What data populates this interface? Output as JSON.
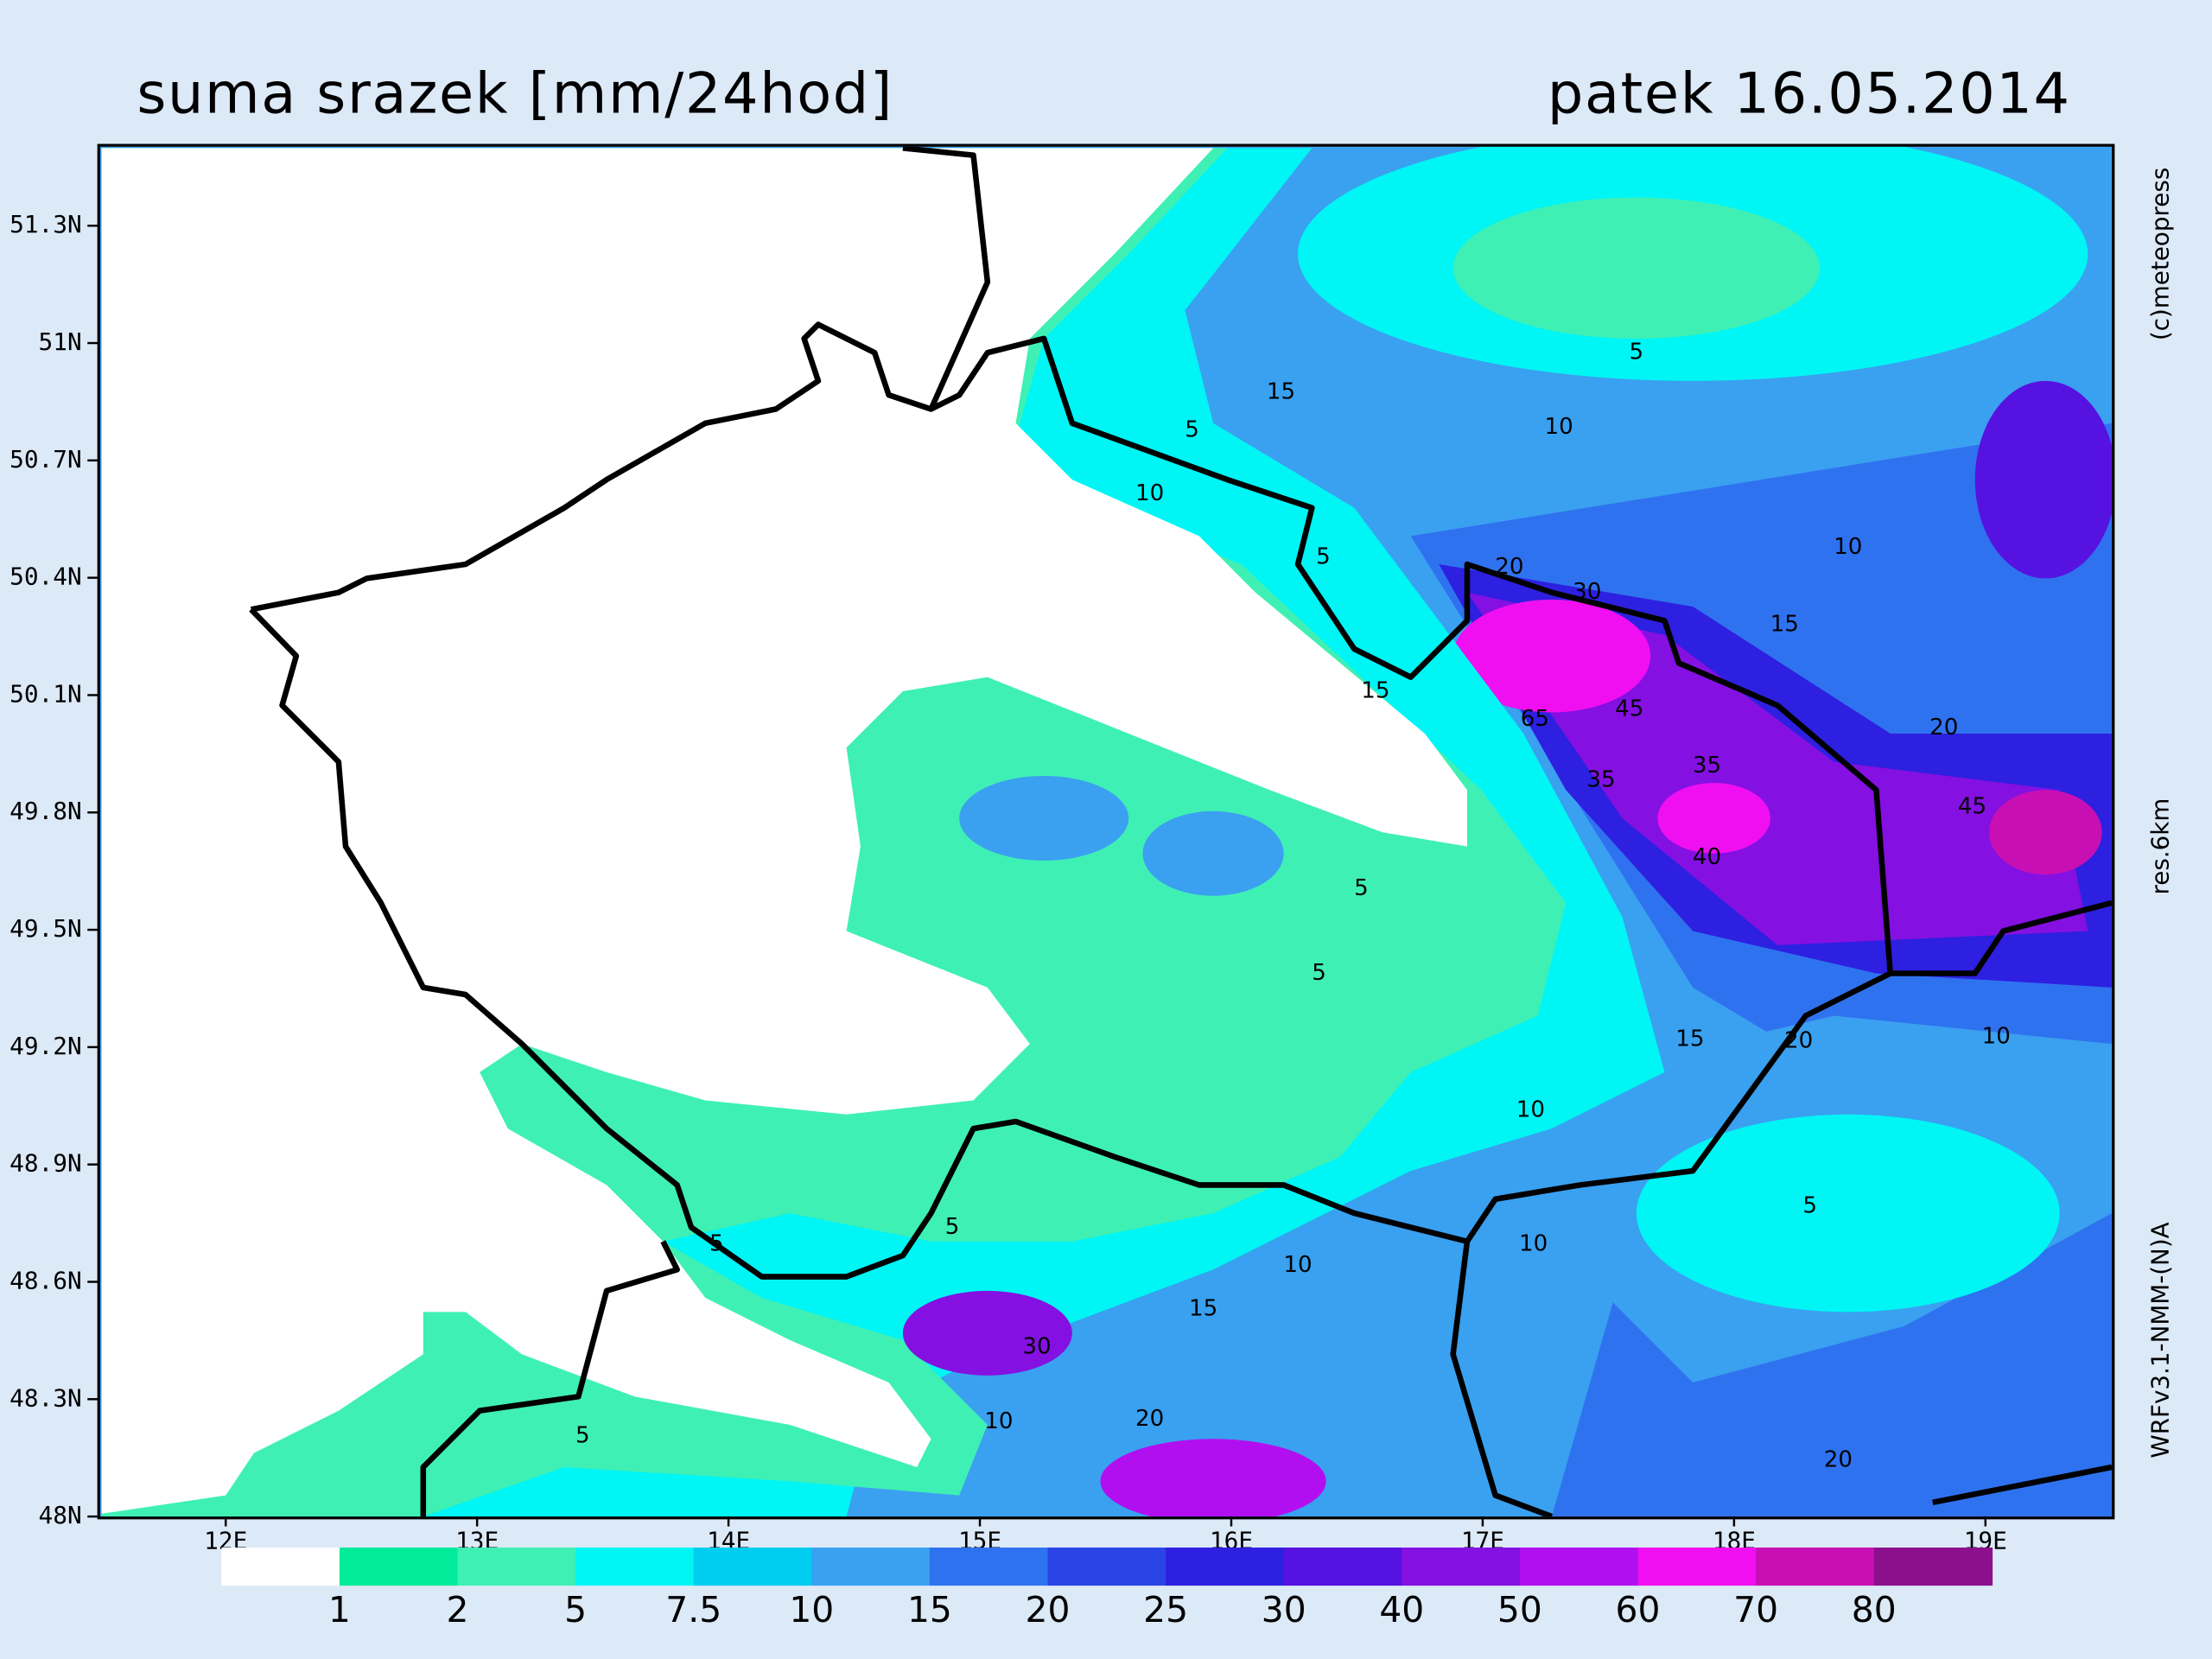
{
  "header": {
    "title": "suma srazek [mm/24hod]",
    "date": "patek 16.05.2014"
  },
  "axes": {
    "lat_labels": [
      "51.3N",
      "51N",
      "50.7N",
      "50.4N",
      "50.1N",
      "49.8N",
      "49.5N",
      "49.2N",
      "48.9N",
      "48.6N",
      "48.3N",
      "48N"
    ],
    "lon_labels": [
      "12E",
      "13E",
      "14E",
      "15E",
      "16E",
      "17E",
      "18E",
      "19E"
    ]
  },
  "legend": {
    "levels": [
      1,
      2,
      5,
      7.5,
      10,
      15,
      20,
      25,
      30,
      40,
      50,
      60,
      70,
      80
    ],
    "colors": [
      "#ffffff",
      "#00eb9a",
      "#3ff0b4",
      "#00f5f5",
      "#00cdf0",
      "#3aa0f0",
      "#2f72f0",
      "#2a44e6",
      "#2d20e0",
      "#5612e0",
      "#8410e2",
      "#b20ff0",
      "#f00ff0",
      "#c80fb4",
      "#8c108c"
    ]
  },
  "side_texts": [
    "(c)meteopress",
    "res.6km",
    "WRFv3.1-NMM-(N)A"
  ],
  "contour_labels": [
    "5",
    "10",
    "15",
    "5",
    "10",
    "10",
    "15",
    "20",
    "5",
    "5",
    "10",
    "15",
    "20",
    "10",
    "5",
    "10",
    "10",
    "15",
    "30",
    "10",
    "20",
    "5",
    "5",
    "5",
    "20",
    "45",
    "35",
    "35",
    "40",
    "45",
    "30",
    "20",
    "15",
    "5",
    "65"
  ]
}
